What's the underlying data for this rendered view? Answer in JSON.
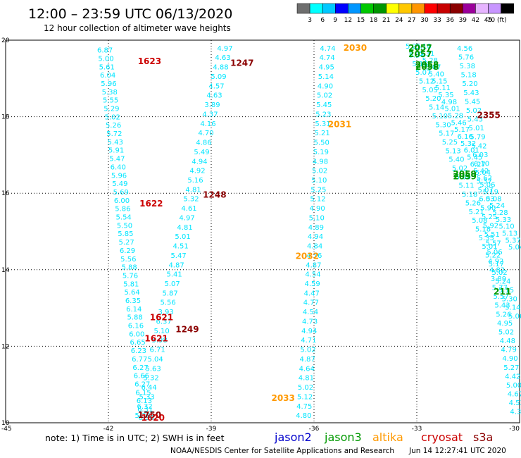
{
  "title": "12:00 – 23:59 UTC 06/13/2020",
  "subtitle": "12 hour collection of altimeter wave heights",
  "colorbar": {
    "colors": [
      "#6e6e6e",
      "#00ffff",
      "#00c8ff",
      "#0000ff",
      "#0096ff",
      "#00c800",
      "#009600",
      "#ffff00",
      "#ffc800",
      "#ff9600",
      "#ff0000",
      "#c80000",
      "#8b0000",
      "#9b009b",
      "#e6b4ff",
      "#c896ff",
      "#000000"
    ],
    "labels": [
      "3",
      "6",
      "9",
      "12",
      "15",
      "18",
      "21",
      "24",
      "27",
      "30",
      "33",
      "36",
      "39",
      "42",
      "45",
      "70 (ft)"
    ]
  },
  "note": "note:  1) Time is in UTC;  2) SWH is in feet",
  "satellites": [
    {
      "name": "jason2",
      "color": "#0000cc"
    },
    {
      "name": "jason3",
      "color": "#009900"
    },
    {
      "name": "altika",
      "color": "#ff9900"
    },
    {
      "name": "cryosat",
      "color": "#cc0000"
    },
    {
      "name": "s3a",
      "color": "#8b0000"
    }
  ],
  "credit": "NOAA/NESDIS Center for Satellite Applications and Research",
  "timestamp": "Jun 14 12:27:41 UTC 2020",
  "chart_data": {
    "type": "scatter",
    "xlim": [
      -45,
      -30
    ],
    "ylim": [
      10,
      20
    ],
    "xticks": [
      -45,
      -42,
      -39,
      -36,
      -33,
      -30
    ],
    "yticks": [
      10,
      12,
      14,
      16,
      18,
      20
    ],
    "xtick_labels": [
      "-45",
      "-42",
      "-39",
      "-36",
      "-33",
      "-30"
    ],
    "ytick_labels": [
      "10",
      "12",
      "14",
      "16",
      "18",
      "20"
    ],
    "grid": true,
    "point_color": "#00e5ff",
    "tracks": [
      {
        "name": "track-1",
        "start": [
          -42.1,
          19.75
        ],
        "end": [
          -40.9,
          10.15
        ],
        "values": [
          "6.87",
          "5.00",
          "5.61",
          "6.04",
          "5.96",
          "5.38",
          "5.55",
          "5.29",
          "5.02",
          "5.26",
          "5.72",
          "5.43",
          "5.91",
          "5.47",
          "6.40",
          "5.96",
          "5.49",
          "5.69",
          "6.00",
          "5.86",
          "5.54",
          "5.50",
          "5.85",
          "5.27",
          "6.29",
          "5.56",
          "5.88",
          "5.76",
          "5.81",
          "5.64",
          "6.35",
          "6.14",
          "5.88",
          "6.16",
          "6.00",
          "6.65",
          "6.23",
          "6.77",
          "6.27",
          "6.66",
          "6.27",
          "6.15",
          "6.13",
          "6.31",
          "6.36"
        ]
      },
      {
        "name": "track-2",
        "start": [
          -38.6,
          19.8
        ],
        "end": [
          -41.0,
          10.2
        ],
        "values": [
          "4.97",
          "4.63",
          "4.88",
          "5.09",
          "4.57",
          "4.63",
          "3.89",
          "4.37",
          "4.16",
          "4.70",
          "4.86",
          "5.49",
          "4.94",
          "4.92",
          "5.16",
          "4.81",
          "5.32",
          "4.61",
          "4.97",
          "4.81",
          "5.01",
          "4.51",
          "5.47",
          "4.87",
          "5.41",
          "5.07",
          "5.87",
          "5.56",
          "3.93",
          "6.37",
          "5.10",
          "5.98",
          "6.71",
          "5.04",
          "5.63",
          "5.32",
          "6.44",
          "5.33",
          "6.32",
          "5.38"
        ]
      },
      {
        "name": "track-3",
        "start": [
          -35.6,
          19.8
        ],
        "end": [
          -36.3,
          10.2
        ],
        "values": [
          "4.74",
          "4.74",
          "4.95",
          "5.14",
          "4.90",
          "5.02",
          "5.45",
          "5.23",
          "5.31",
          "5.21",
          "5.50",
          "5.19",
          "4.98",
          "5.02",
          "5.10",
          "5.25",
          "5.12",
          "4.90",
          "5.10",
          "4.89",
          "4.94",
          "4.84",
          "4.76",
          "4.87",
          "4.54",
          "4.59",
          "4.47",
          "4.77",
          "4.54",
          "4.73",
          "4.94",
          "4.71",
          "5.02",
          "4.87",
          "4.64",
          "4.81",
          "5.02",
          "5.12",
          "4.75",
          "4.80"
        ]
      },
      {
        "name": "track-4",
        "start": [
          -33.1,
          19.85
        ],
        "end": [
          -30.1,
          12.8
        ],
        "values": [
          "5.25",
          "5.34",
          "5.16",
          "5.07",
          "5.12",
          "5.05",
          "5.20",
          "5.14",
          "5.10",
          "5.30",
          "5.17",
          "5.25",
          "5.13",
          "5.40",
          "5.02",
          "5.00",
          "5.11",
          "5.18",
          "5.26",
          "5.21",
          "5.08",
          "5.18",
          "5.35",
          "5.01",
          "5.22",
          "5.17",
          "5.02",
          "5.24",
          "5.15",
          "5.30",
          "5.14",
          "5.06"
        ]
      },
      {
        "name": "track-5",
        "start": [
          -32.8,
          19.85
        ],
        "end": [
          -30.1,
          14.6
        ],
        "values": [
          "5.10",
          "5.31",
          "5.28",
          "5.07",
          "5.40",
          "5.15",
          "5.11",
          "5.35",
          "4.98",
          "5.01",
          "5.28",
          "5.46",
          "5.17",
          "6.16",
          "5.32",
          "6.01",
          "5.45",
          "6.27",
          "5.42",
          "5.62",
          "5.06",
          "5.19",
          "5.08",
          "5.24",
          "5.28",
          "5.33",
          "5.10",
          "5.13",
          "5.37",
          "5.04"
        ]
      },
      {
        "name": "track-6",
        "start": [
          -31.6,
          19.8
        ],
        "end": [
          -30.05,
          10.3
        ],
        "values": [
          "4.56",
          "5.76",
          "5.38",
          "5.18",
          "5.20",
          "5.43",
          "5.45",
          "5.02",
          "5.43",
          "5.01",
          "5.79",
          "5.42",
          "6.03",
          "6.10",
          "5.04",
          "5.37",
          "5.07",
          "6.03",
          "5.90",
          "5.25",
          "5.92",
          "5.51",
          "5.57",
          "5.06",
          "4.92",
          "4.82",
          "3.89",
          "5.77",
          "5.57",
          "5.43",
          "5.26",
          "4.95",
          "5.02",
          "4.48",
          "4.79",
          "4.90",
          "5.27",
          "4.42",
          "5.00",
          "4.67",
          "4.53",
          "4.30"
        ]
      }
    ],
    "time_labels": [
      {
        "text": "1623",
        "x": -40.8,
        "y": 19.45,
        "color": "#cc0000"
      },
      {
        "text": "1247",
        "x": -38.1,
        "y": 19.4,
        "color": "#8b0000"
      },
      {
        "text": "2030",
        "x": -34.8,
        "y": 19.8,
        "color": "#ff9900"
      },
      {
        "text": "2057",
        "x": -32.9,
        "y": 19.8,
        "color": "#009900"
      },
      {
        "text": "2057",
        "x": -32.9,
        "y": 19.63,
        "color": "#009900"
      },
      {
        "text": "2058",
        "x": -32.7,
        "y": 19.36,
        "color": "#009900"
      },
      {
        "text": "2058",
        "x": -32.7,
        "y": 19.3,
        "color": "#009900"
      },
      {
        "text": "2355",
        "x": -30.9,
        "y": 18.04,
        "color": "#8b0000"
      },
      {
        "text": "2031",
        "x": -35.25,
        "y": 17.8,
        "color": "#ff9900"
      },
      {
        "text": "2059",
        "x": -31.6,
        "y": 16.5,
        "color": "#009900"
      },
      {
        "text": "2059",
        "x": -31.6,
        "y": 16.44,
        "color": "#009900"
      },
      {
        "text": "1248",
        "x": -38.9,
        "y": 15.96,
        "color": "#8b0000"
      },
      {
        "text": "1622",
        "x": -40.75,
        "y": 15.73,
        "color": "#cc0000"
      },
      {
        "text": "2032",
        "x": -36.2,
        "y": 14.36,
        "color": "#ff9900"
      },
      {
        "text": "211",
        "x": -30.5,
        "y": 13.43,
        "color": "#009900"
      },
      {
        "text": "1621",
        "x": -40.45,
        "y": 12.75,
        "color": "#cc0000"
      },
      {
        "text": "1249",
        "x": -39.7,
        "y": 12.44,
        "color": "#8b0000"
      },
      {
        "text": "1621",
        "x": -40.6,
        "y": 12.2,
        "color": "#cc0000"
      },
      {
        "text": "2033",
        "x": -36.9,
        "y": 10.64,
        "color": "#ff9900"
      },
      {
        "text": "1750",
        "x": -40.8,
        "y": 10.2,
        "color": "#8b0000"
      },
      {
        "text": "1620",
        "x": -40.7,
        "y": 10.13,
        "color": "#cc0000"
      }
    ]
  }
}
